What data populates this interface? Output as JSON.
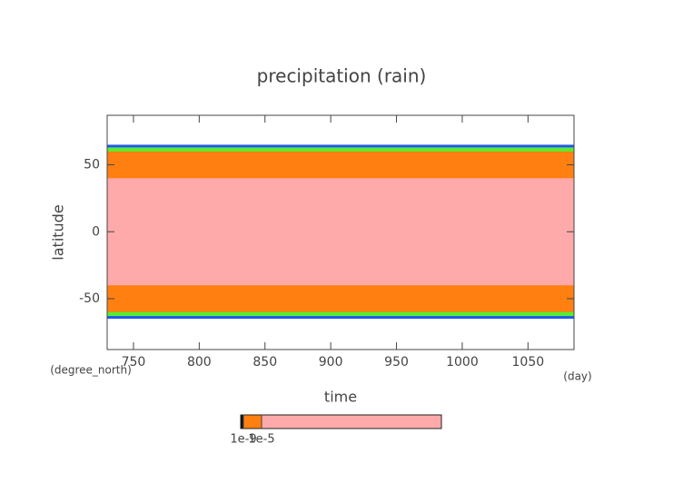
{
  "chart_data": {
    "type": "latitude-time-fill",
    "title": "precipitation (rain)",
    "x_label": "time",
    "y_label": "latitude",
    "x_unit": "(day)",
    "y_unit": "(degree_north)",
    "xlim": [
      730,
      1085
    ],
    "ylim": [
      -88,
      87
    ],
    "xticks": [
      750,
      800,
      850,
      900,
      950,
      1000,
      1050
    ],
    "yticks": [
      -50,
      0,
      50
    ],
    "bands": [
      {
        "color": "#2255ee",
        "lat": [
          -65,
          65
        ]
      },
      {
        "color": "#55ee33",
        "lat": [
          -63,
          63
        ]
      },
      {
        "color": "#ff8010",
        "lat": [
          -60,
          60
        ]
      },
      {
        "color": "#ffaaaa",
        "lat": [
          -40,
          40
        ]
      }
    ],
    "colorbar": {
      "colors": [
        "#111111",
        "#ff8010",
        "#ffaaaa"
      ],
      "ticks": [
        {
          "value": 1e-09,
          "label": "1e-9"
        },
        {
          "value": 1e-05,
          "label": "1e-5"
        }
      ]
    }
  }
}
